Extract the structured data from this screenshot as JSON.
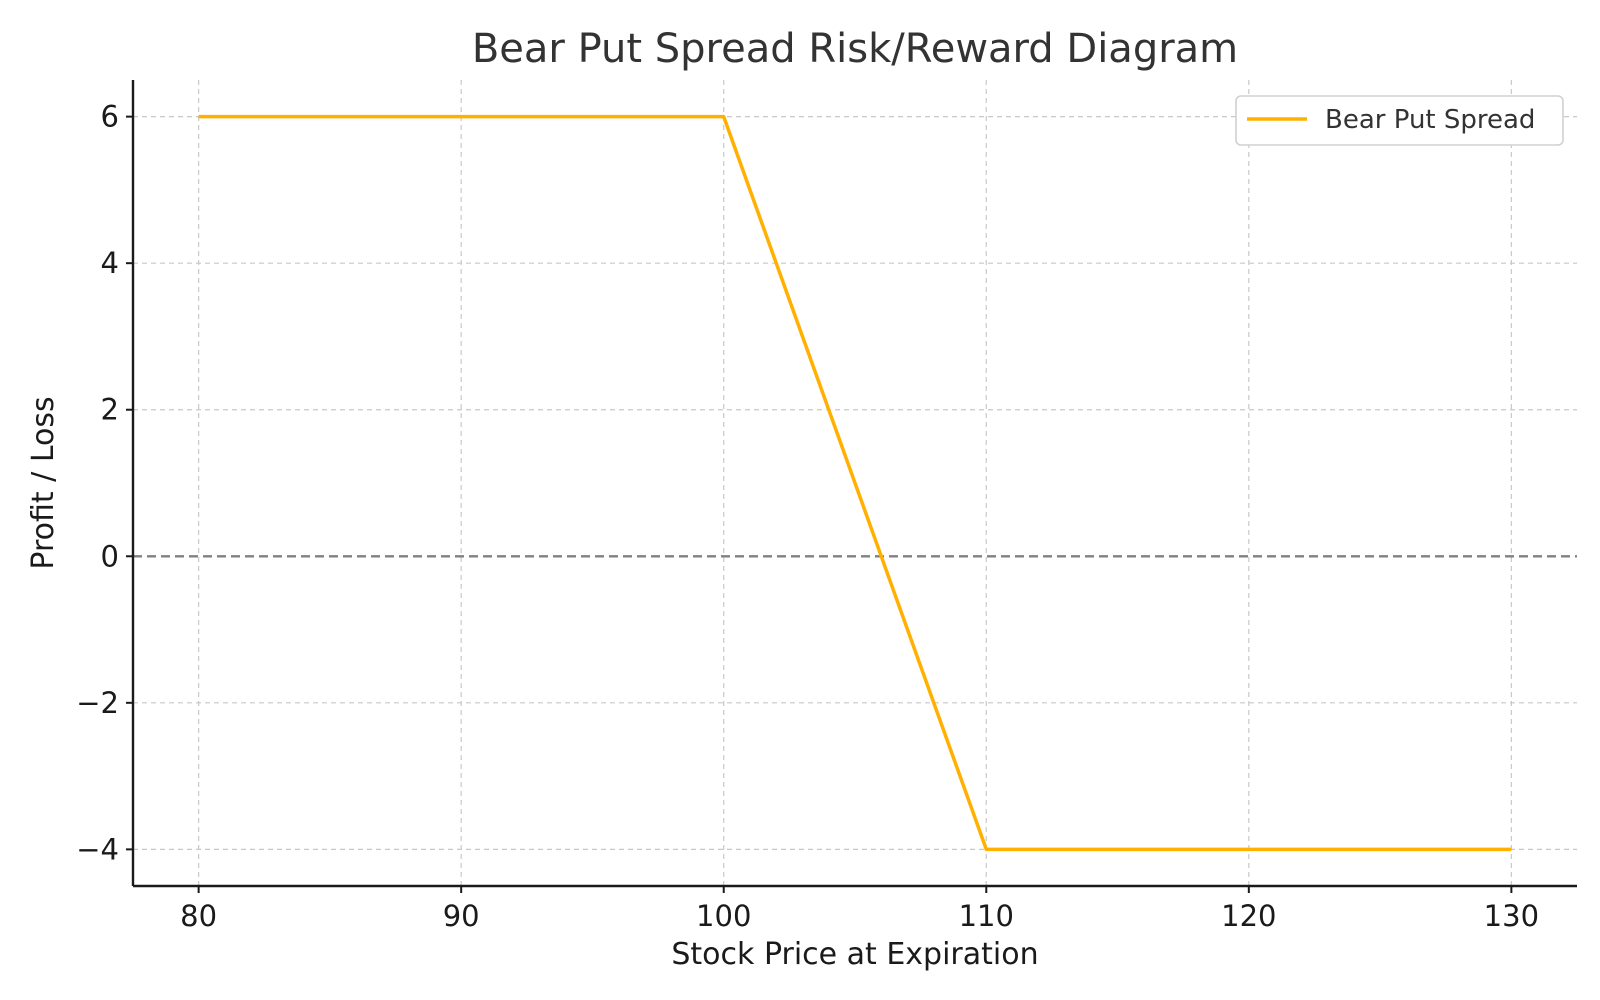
{
  "chart_data": {
    "type": "line",
    "title": "Bear Put Spread Risk/Reward Diagram",
    "xlabel": "Stock Price at Expiration",
    "ylabel": "Profit / Loss",
    "xlim": [
      77.5,
      132.5
    ],
    "ylim": [
      -4.5,
      6.5
    ],
    "xticks": [
      80,
      90,
      100,
      110,
      120,
      130
    ],
    "yticks": [
      6,
      4,
      2,
      0,
      -2,
      -4
    ],
    "xtick_labels": [
      "80",
      "90",
      "100",
      "110",
      "120",
      "130"
    ],
    "ytick_labels": [
      "6",
      "4",
      "2",
      "0",
      "−2",
      "−4"
    ],
    "grid": true,
    "zero_line": true,
    "legend_position": "upper right",
    "series": [
      {
        "name": "Bear Put Spread",
        "color": "#FFB000",
        "x": [
          80,
          100,
          110,
          130
        ],
        "y": [
          6,
          6,
          -4,
          -4
        ]
      }
    ]
  }
}
